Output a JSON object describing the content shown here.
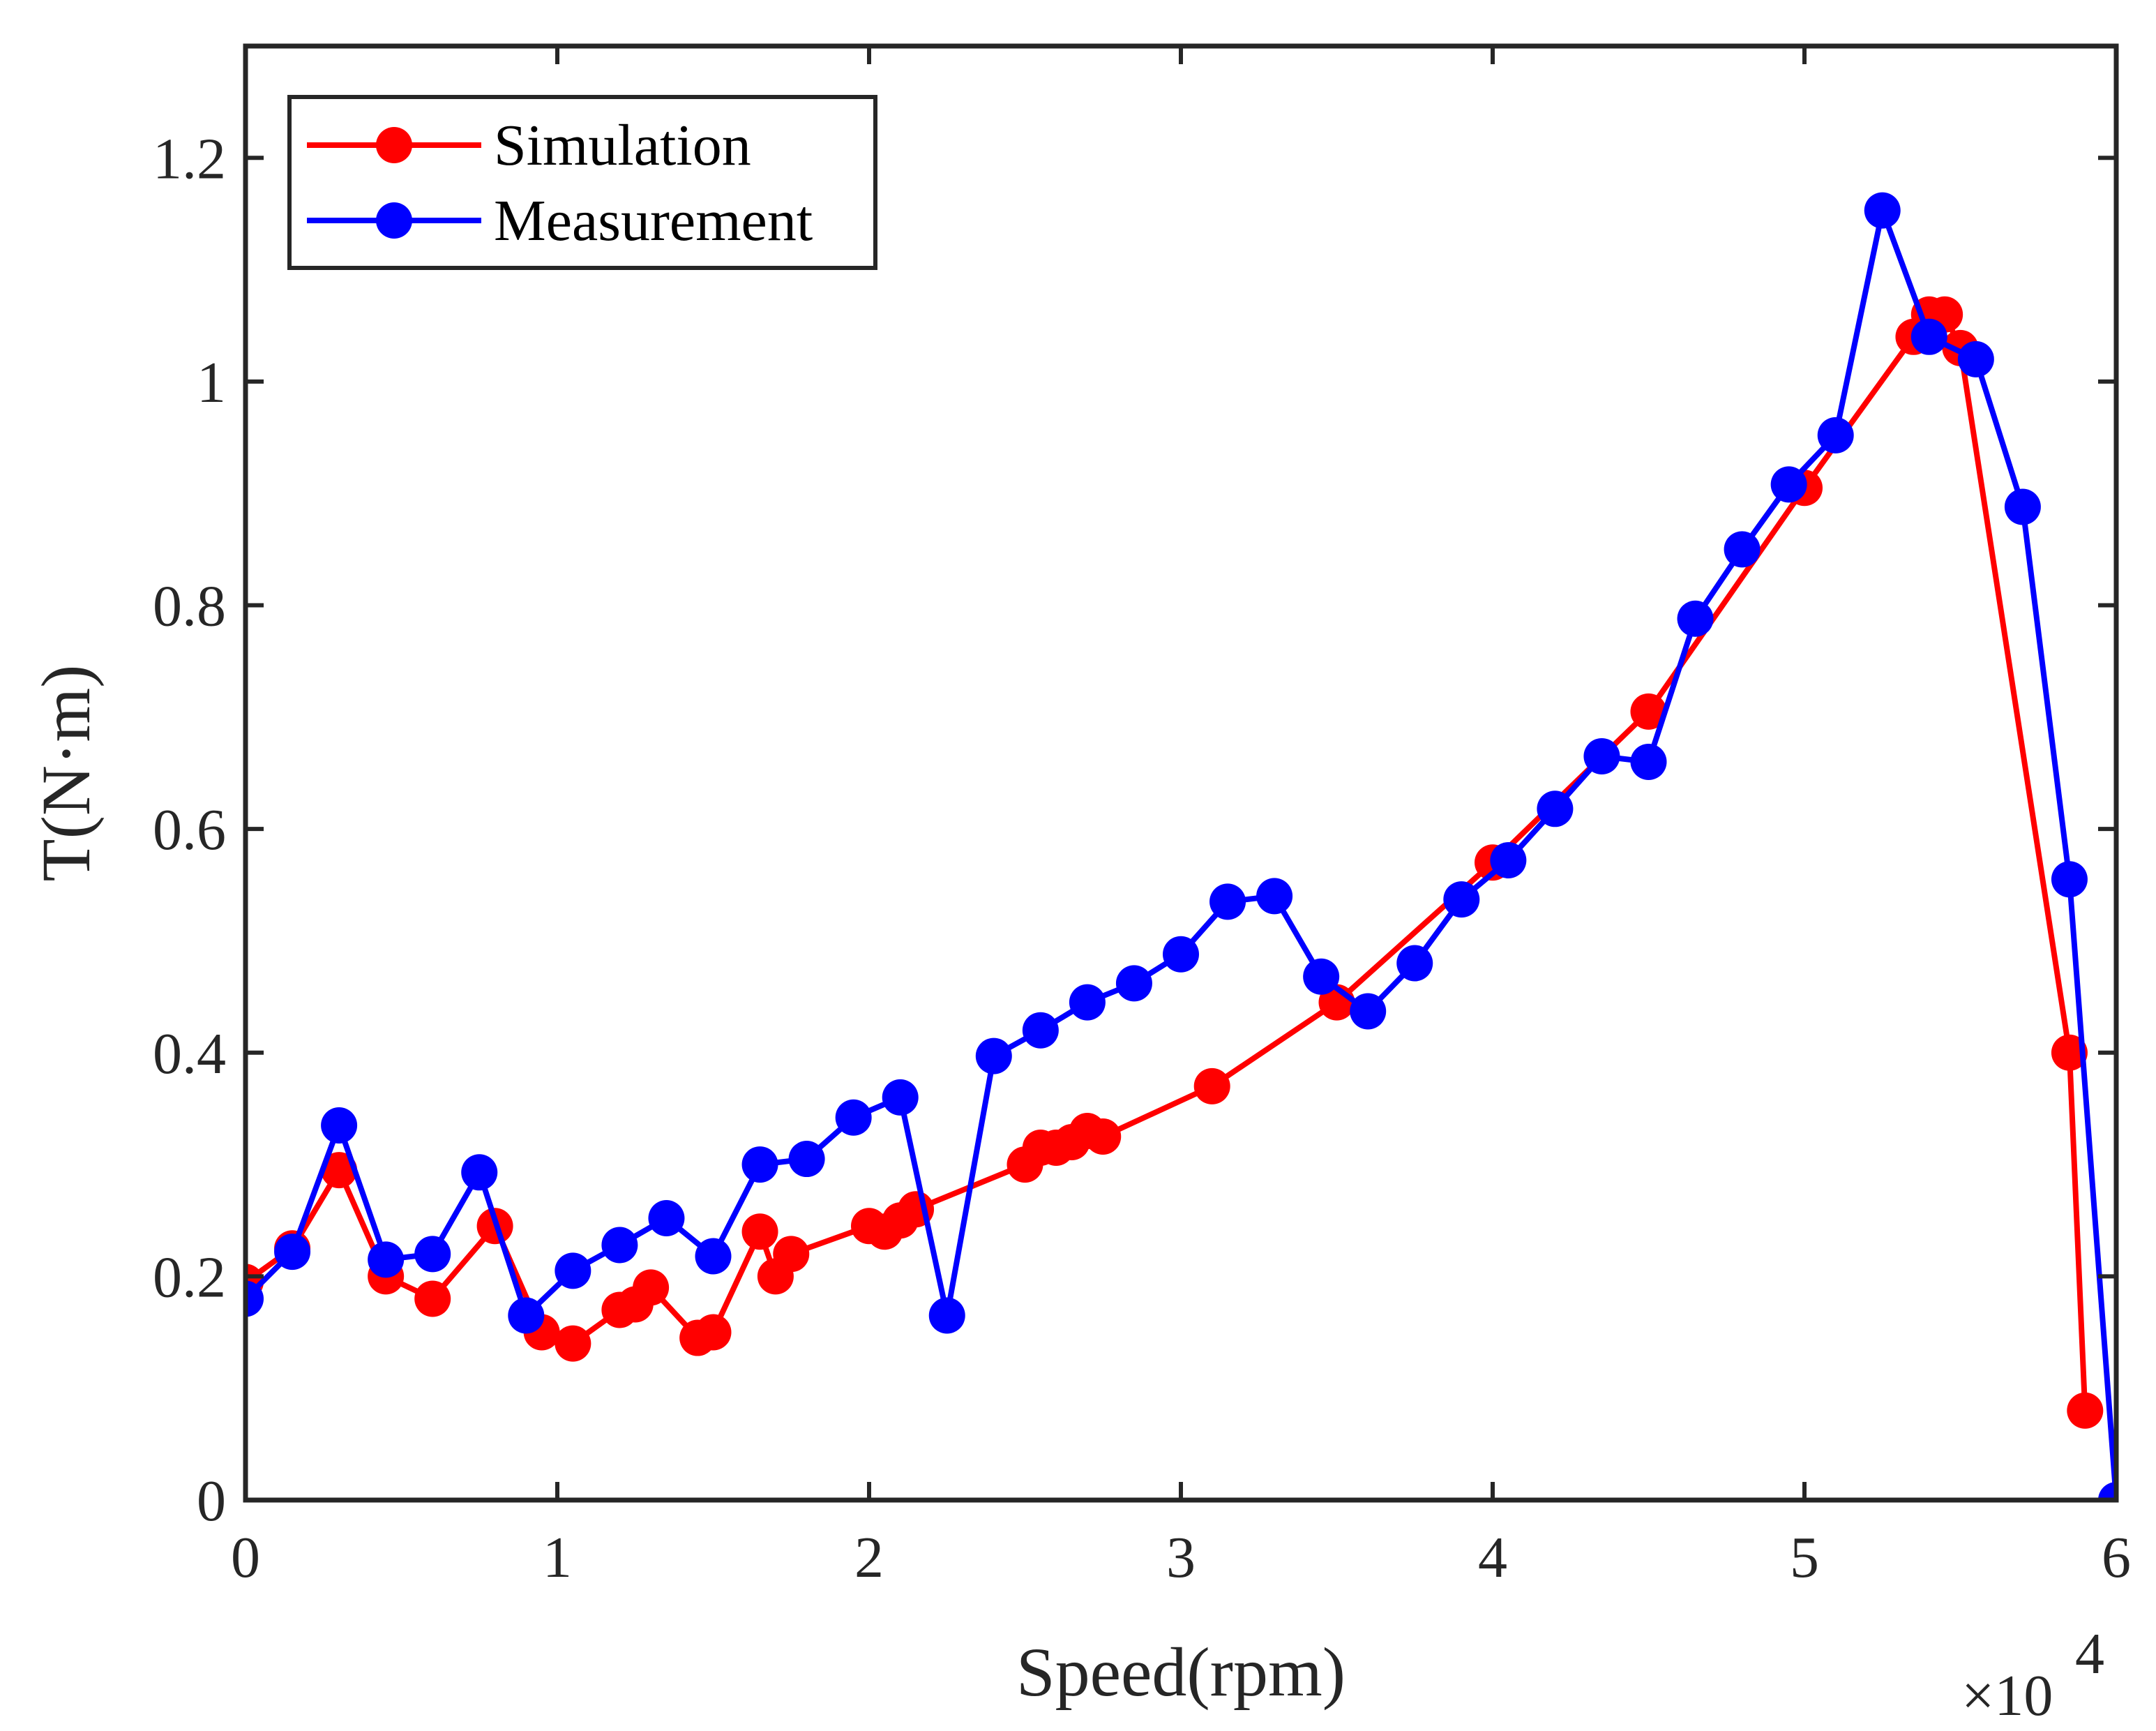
{
  "chart_data": {
    "type": "line",
    "xlabel": "Speed(rpm)",
    "ylabel": "T(N·m)",
    "x_multiplier_label": "×10",
    "x_multiplier_exponent": "4",
    "xlim": [
      0,
      60000
    ],
    "ylim": [
      0,
      1.3
    ],
    "x_ticks": [
      0,
      10000,
      20000,
      30000,
      40000,
      50000,
      60000
    ],
    "x_tick_labels": [
      "0",
      "1",
      "2",
      "3",
      "4",
      "5",
      "6"
    ],
    "y_ticks": [
      0,
      0.2,
      0.4,
      0.6,
      0.8,
      1.0,
      1.2
    ],
    "y_tick_labels": [
      "0",
      "0.2",
      "0.4",
      "0.6",
      "0.8",
      "1",
      "1.2"
    ],
    "grid": false,
    "legend_position": "top-left",
    "series": [
      {
        "name": "Simulation",
        "color": "#ff0000",
        "x": [
          0,
          1500,
          3000,
          4500,
          6000,
          8000,
          9500,
          10500,
          12000,
          12500,
          13000,
          14500,
          15000,
          16500,
          17000,
          17500,
          20000,
          20500,
          21000,
          21500,
          25000,
          25500,
          26000,
          26500,
          27000,
          27500,
          31000,
          35000,
          40000,
          45000,
          50000,
          53500,
          54000,
          54500,
          55000,
          58500,
          59000
        ],
        "y": [
          0.195,
          0.225,
          0.295,
          0.2,
          0.18,
          0.245,
          0.15,
          0.14,
          0.17,
          0.175,
          0.19,
          0.145,
          0.15,
          0.24,
          0.2,
          0.22,
          0.245,
          0.24,
          0.25,
          0.26,
          0.3,
          0.315,
          0.315,
          0.32,
          0.33,
          0.325,
          0.37,
          0.445,
          0.57,
          0.705,
          0.905,
          1.04,
          1.06,
          1.06,
          1.03,
          0.4,
          0.08
        ]
      },
      {
        "name": "Measurement",
        "color": "#0000ff",
        "x": [
          0,
          1500,
          3000,
          4500,
          6000,
          7500,
          9000,
          10500,
          12000,
          13500,
          15000,
          16500,
          18000,
          19500,
          21000,
          22500,
          24000,
          25500,
          27000,
          28500,
          30000,
          31500,
          33000,
          34500,
          36000,
          37500,
          39000,
          40500,
          42000,
          43500,
          45000,
          46500,
          48000,
          49500,
          51000,
          52500,
          54000,
          55500,
          57000,
          58500,
          60000
        ],
        "y": [
          0.18,
          0.222,
          0.335,
          0.215,
          0.22,
          0.293,
          0.165,
          0.205,
          0.228,
          0.252,
          0.218,
          0.3,
          0.305,
          0.342,
          0.36,
          0.165,
          0.397,
          0.42,
          0.445,
          0.462,
          0.488,
          0.535,
          0.54,
          0.468,
          0.437,
          0.48,
          0.537,
          0.572,
          0.618,
          0.665,
          0.66,
          0.788,
          0.85,
          0.908,
          0.952,
          1.153,
          1.04,
          1.02,
          0.888,
          0.555,
          0.0
        ]
      }
    ]
  }
}
